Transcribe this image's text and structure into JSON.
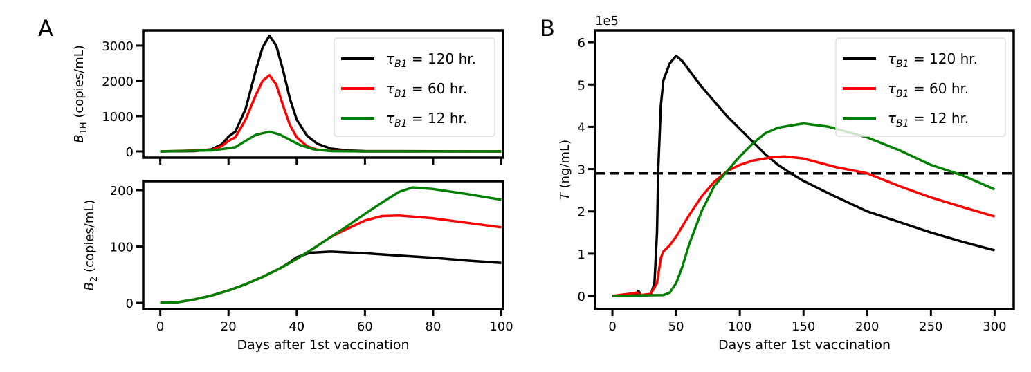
{
  "chart_data": [
    {
      "panel_label": "A",
      "type": "line",
      "ylabel": {
        "main": "B",
        "sub": "1H",
        "unit": " (copies/mL)"
      },
      "xlim": [
        -5,
        100.5
      ],
      "ylim": [
        -176,
        3430
      ],
      "xticks": [
        0,
        20,
        40,
        60,
        80,
        100
      ],
      "xticklabels_shown": false,
      "yticks": [
        0,
        1000,
        2000,
        3000
      ],
      "grid": false,
      "legend": "top-right",
      "series": [
        {
          "name": {
            "sym": "τ",
            "sub": "B1",
            "rest": " = 120 hr."
          },
          "color": "#000000",
          "x": [
            0,
            10,
            15,
            18,
            20,
            22,
            25,
            28,
            30,
            32,
            34,
            36,
            38,
            40,
            43,
            46,
            50,
            55,
            60,
            100
          ],
          "y": [
            0,
            10,
            60,
            200,
            420,
            560,
            1200,
            2300,
            2950,
            3280,
            3000,
            2300,
            1500,
            900,
            450,
            220,
            80,
            25,
            10,
            0
          ]
        },
        {
          "name": {
            "sym": "τ",
            "sub": "B1",
            "rest": " = 60 hr."
          },
          "color": "#ff0000",
          "x": [
            0,
            15,
            18,
            20,
            22,
            25,
            28,
            30,
            32,
            34,
            36,
            38,
            40,
            43,
            46,
            50,
            60,
            100
          ],
          "y": [
            0,
            40,
            150,
            300,
            400,
            900,
            1600,
            2000,
            2160,
            1900,
            1300,
            750,
            400,
            150,
            50,
            15,
            0,
            0
          ]
        },
        {
          "name": {
            "sym": "τ",
            "sub": "B1",
            "rest": " = 12 hr."
          },
          "color": "#008000",
          "x": [
            0,
            15,
            20,
            22,
            25,
            28,
            32,
            35,
            38,
            41,
            45,
            50,
            60,
            100
          ],
          "y": [
            0,
            30,
            90,
            120,
            300,
            470,
            560,
            480,
            330,
            180,
            60,
            10,
            0,
            0
          ]
        }
      ]
    },
    {
      "type": "line",
      "ylabel": {
        "main": "B",
        "sub": "2",
        "unit": " (copies/mL)"
      },
      "xlabel": "Days after 1st vaccination",
      "xlim": [
        -5,
        100.5
      ],
      "ylim": [
        -11,
        216
      ],
      "xticks": [
        0,
        20,
        40,
        60,
        80,
        100
      ],
      "xticklabels_shown": true,
      "yticks": [
        0,
        100,
        200
      ],
      "grid": false,
      "series": [
        {
          "color": "#000000",
          "x": [
            0,
            5,
            10,
            15,
            20,
            25,
            30,
            35,
            38,
            40,
            44,
            50,
            60,
            70,
            80,
            90,
            100
          ],
          "y": [
            0,
            1,
            6,
            13,
            22,
            33,
            46,
            61,
            72,
            81,
            89,
            91,
            88,
            84,
            80,
            75,
            71
          ]
        },
        {
          "color": "#ff0000",
          "x": [
            0,
            5,
            10,
            15,
            20,
            25,
            30,
            35,
            40,
            45,
            50,
            55,
            60,
            65,
            70,
            80,
            90,
            100
          ],
          "y": [
            0,
            1,
            6,
            13,
            22,
            33,
            46,
            61,
            78,
            97,
            117,
            132,
            146,
            154,
            155,
            150,
            142,
            134
          ]
        },
        {
          "color": "#008000",
          "x": [
            0,
            5,
            10,
            15,
            20,
            25,
            30,
            35,
            40,
            45,
            50,
            55,
            60,
            65,
            70,
            74,
            80,
            90,
            100
          ],
          "y": [
            0,
            1,
            6,
            13,
            22,
            33,
            46,
            61,
            78,
            97,
            117,
            137,
            158,
            178,
            197,
            205,
            202,
            193,
            183
          ]
        }
      ]
    },
    {
      "panel_label": "B",
      "type": "line",
      "ylabel": {
        "main": "T",
        "sub": "",
        "unit": " (ng/mL)"
      },
      "xlabel": "Days after 1st vaccination",
      "y_offset_text": "1e5",
      "xlim": [
        -13.6,
        315
      ],
      "ylim": [
        -0.31,
        6.28
      ],
      "xticks": [
        0,
        50,
        100,
        150,
        200,
        250,
        300
      ],
      "xticklabels_shown": true,
      "yticks": [
        0,
        1,
        2,
        3,
        4,
        5,
        6
      ],
      "grid": false,
      "legend": "top-right",
      "hline": {
        "y": 2.9,
        "color": "#000000",
        "style": "dashed"
      },
      "series": [
        {
          "name": {
            "sym": "τ",
            "sub": "B1",
            "rest": " = 120 hr."
          },
          "color": "#000000",
          "x": [
            0,
            15,
            19,
            20,
            21,
            22,
            30,
            33,
            35,
            36,
            38,
            40,
            45,
            50,
            55,
            60,
            70,
            80,
            90,
            100,
            110,
            120,
            130,
            140,
            150,
            175,
            200,
            225,
            250,
            275,
            300
          ],
          "y": [
            0,
            0.02,
            0.05,
            0.12,
            0.1,
            0.01,
            0.02,
            0.3,
            1.5,
            3,
            4.5,
            5.1,
            5.5,
            5.68,
            5.55,
            5.35,
            4.95,
            4.6,
            4.25,
            3.95,
            3.65,
            3.35,
            3.1,
            2.9,
            2.72,
            2.35,
            2.0,
            1.75,
            1.5,
            1.28,
            1.08
          ]
        },
        {
          "name": {
            "sym": "τ",
            "sub": "B1",
            "rest": " = 60 hr."
          },
          "color": "#ff0000",
          "x": [
            0,
            20,
            22,
            30,
            35,
            38,
            40,
            45,
            50,
            60,
            70,
            80,
            90,
            100,
            110,
            125,
            135,
            150,
            175,
            200,
            225,
            250,
            275,
            300
          ],
          "y": [
            0,
            0.08,
            0.02,
            0.05,
            0.3,
            0.9,
            1.05,
            1.2,
            1.4,
            1.9,
            2.35,
            2.7,
            2.95,
            3.1,
            3.2,
            3.28,
            3.3,
            3.25,
            3.05,
            2.9,
            2.6,
            2.33,
            2.1,
            1.88
          ]
        },
        {
          "name": {
            "sym": "τ",
            "sub": "B1",
            "rest": " = 12 hr."
          },
          "color": "#008000",
          "x": [
            0,
            40,
            45,
            50,
            55,
            60,
            70,
            80,
            90,
            100,
            110,
            120,
            130,
            150,
            170,
            200,
            225,
            250,
            275,
            300
          ],
          "y": [
            0,
            0.02,
            0.08,
            0.3,
            0.7,
            1.2,
            2.0,
            2.6,
            2.95,
            3.3,
            3.6,
            3.85,
            3.98,
            4.08,
            4.0,
            3.75,
            3.45,
            3.1,
            2.85,
            2.52
          ]
        }
      ]
    }
  ]
}
